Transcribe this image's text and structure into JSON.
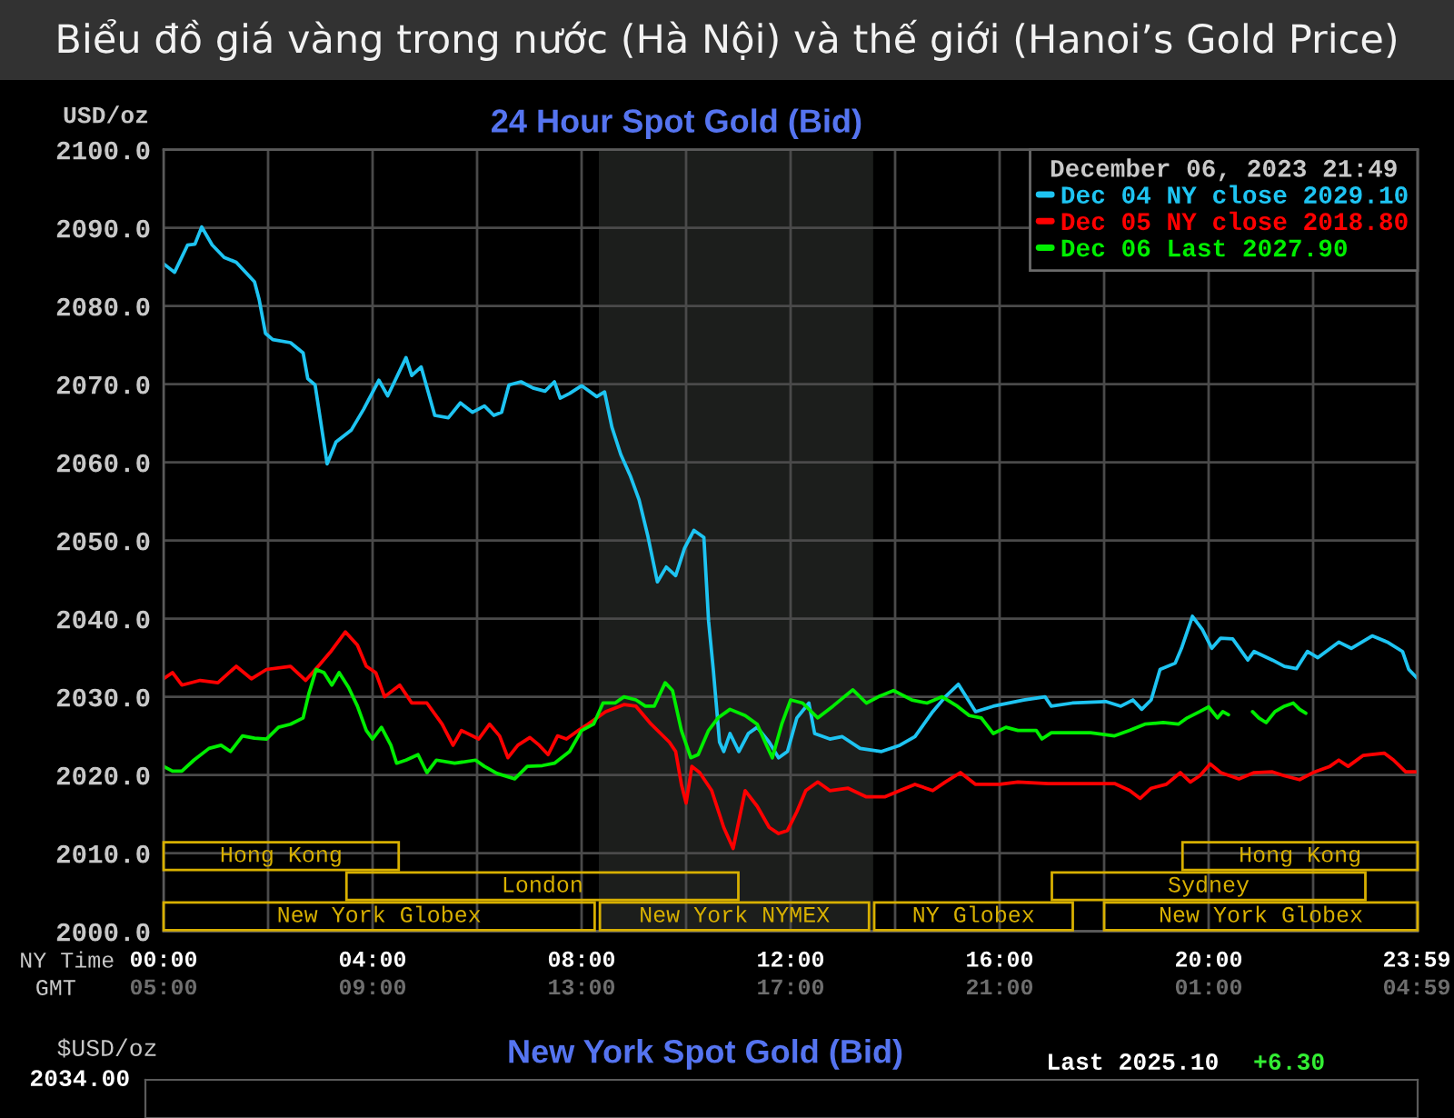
{
  "chart_data": [
    {
      "type": "line",
      "title": "Biểu đồ giá vàng trong nước (Hà Nội) và thế giới (Hanoi’s Gold Price)",
      "subtitle": "24 Hour Spot Gold (Bid)",
      "ylabel": "USD/oz",
      "xlabel": "NY Time",
      "x2label": "GMT",
      "legend_title": "December 06, 2023 21:49",
      "legend": "top right",
      "grid": true,
      "xlim": [
        0,
        24
      ],
      "xticks": [
        {
          "value": 0,
          "label": "00:00"
        },
        {
          "value": 2,
          "label": null
        },
        {
          "value": 4,
          "label": "04:00"
        },
        {
          "value": 6,
          "label": null
        },
        {
          "value": 8,
          "label": "08:00"
        },
        {
          "value": 10,
          "label": null
        },
        {
          "value": 12,
          "label": "12:00"
        },
        {
          "value": 14,
          "label": null
        },
        {
          "value": 16,
          "label": "16:00"
        },
        {
          "value": 18,
          "label": null
        },
        {
          "value": 20,
          "label": "20:00"
        },
        {
          "value": 22,
          "label": null
        },
        {
          "value": 23.983,
          "label": "23:59"
        }
      ],
      "x2lim": [
        "2023-12-06T05:00",
        "2023-12-07T05:00"
      ],
      "x2ticks": [
        {
          "value": "2023-12-06T05:00",
          "label": "05:00"
        },
        {
          "value": "2023-12-06T09:00",
          "label": "09:00"
        },
        {
          "value": "2023-12-06T13:00",
          "label": "13:00"
        },
        {
          "value": "2023-12-06T17:00",
          "label": "17:00"
        },
        {
          "value": "2023-12-06T21:00",
          "label": "21:00"
        },
        {
          "value": "2023-12-07T01:00",
          "label": "01:00"
        },
        {
          "value": "2023-12-07T04:59",
          "label": "04:59"
        }
      ],
      "ylim": [
        2000,
        2100
      ],
      "yticks": [
        {
          "value": 2000,
          "label": "2000.0"
        },
        {
          "value": 2010,
          "label": "2010.0"
        },
        {
          "value": 2020,
          "label": "2020.0"
        },
        {
          "value": 2030,
          "label": "2030.0"
        },
        {
          "value": 2040,
          "label": "2040.0"
        },
        {
          "value": 2050,
          "label": "2050.0"
        },
        {
          "value": 2060,
          "label": "2060.0"
        },
        {
          "value": 2070,
          "label": "2070.0"
        },
        {
          "value": 2080,
          "label": "2080.0"
        },
        {
          "value": 2090,
          "label": "2090.0"
        },
        {
          "value": 2100,
          "label": "2100.0"
        }
      ],
      "bands": [
        {
          "axis": "x",
          "from": 8.33,
          "to": 13.58,
          "color": "#1c1e1c"
        }
      ],
      "series": [
        {
          "name": "Dec 04 NY close 2029.10",
          "color": "#1ec4f2",
          "x": [
            0,
            0.21,
            0.46,
            0.6,
            0.73,
            0.93,
            1.16,
            1.39,
            1.74,
            1.83,
            1.95,
            2.09,
            2.43,
            2.67,
            2.76,
            2.9,
            3.13,
            3.3,
            3.59,
            3.83,
            4.12,
            4.29,
            4.64,
            4.75,
            4.93,
            5.19,
            5.45,
            5.68,
            5.91,
            6.14,
            6.32,
            6.47,
            6.61,
            6.84,
            7.07,
            7.3,
            7.48,
            7.59,
            7.77,
            8.0,
            8.29,
            8.44,
            8.58,
            8.75,
            8.93,
            9.1,
            9.27,
            9.45,
            9.62,
            9.8,
            9.97,
            10.15,
            10.34,
            10.43,
            10.52,
            10.64,
            10.72,
            10.84,
            11.01,
            11.19,
            11.36,
            11.59,
            11.77,
            11.94,
            12.12,
            12.35,
            12.46,
            12.75,
            12.99,
            13.33,
            13.74,
            14.09,
            14.38,
            14.72,
            14.96,
            15.21,
            15.54,
            15.88,
            16.46,
            16.87,
            16.99,
            17.39,
            18.03,
            18.32,
            18.55,
            18.72,
            18.9,
            19.07,
            19.36,
            19.48,
            19.69,
            19.88,
            20.06,
            20.23,
            20.46,
            20.75,
            20.87,
            21.22,
            21.45,
            21.68,
            21.89,
            22.09,
            22.49,
            22.73,
            23.13,
            23.42,
            23.71,
            23.83,
            24.0
          ],
          "values": [
            2085.4,
            2084.3,
            2087.8,
            2087.9,
            2090.1,
            2087.8,
            2086.2,
            2085.6,
            2083.1,
            2080.8,
            2076.5,
            2075.7,
            2075.3,
            2074.0,
            2070.7,
            2069.9,
            2059.8,
            2062.6,
            2064.1,
            2066.8,
            2070.5,
            2068.5,
            2073.4,
            2071.1,
            2072.2,
            2066.0,
            2065.7,
            2067.6,
            2066.4,
            2067.2,
            2066.0,
            2066.4,
            2069.9,
            2070.3,
            2069.5,
            2069.1,
            2070.3,
            2068.2,
            2068.8,
            2069.8,
            2068.4,
            2069.0,
            2064.5,
            2061.0,
            2058.3,
            2055.2,
            2050.5,
            2044.7,
            2046.6,
            2045.5,
            2049.0,
            2051.3,
            2050.4,
            2039.7,
            2033.5,
            2024.2,
            2023.0,
            2025.3,
            2023.0,
            2025.3,
            2026.1,
            2024.2,
            2022.2,
            2023.0,
            2027.3,
            2029.2,
            2025.3,
            2024.6,
            2024.9,
            2023.4,
            2023.0,
            2023.8,
            2024.9,
            2028.1,
            2030.0,
            2031.6,
            2028.1,
            2028.8,
            2029.6,
            2030.0,
            2028.8,
            2029.2,
            2029.4,
            2028.8,
            2029.6,
            2028.4,
            2029.6,
            2033.5,
            2034.3,
            2036.2,
            2040.3,
            2038.6,
            2036.2,
            2037.5,
            2037.4,
            2034.7,
            2035.8,
            2034.7,
            2033.9,
            2033.6,
            2035.8,
            2035.0,
            2037.0,
            2036.2,
            2037.8,
            2037.0,
            2035.8,
            2033.5,
            2032.3
          ]
        },
        {
          "name": "Dec 05 NY close 2018.80",
          "color": "#ff0000",
          "x": [
            0,
            0.17,
            0.35,
            0.7,
            1.04,
            1.39,
            1.68,
            1.97,
            2.43,
            2.72,
            2.96,
            3.19,
            3.48,
            3.71,
            3.88,
            4.06,
            4.23,
            4.52,
            4.75,
            5.04,
            5.33,
            5.54,
            5.7,
            6.03,
            6.24,
            6.43,
            6.59,
            6.78,
            7.01,
            7.19,
            7.36,
            7.54,
            7.71,
            7.94,
            8.12,
            8.46,
            8.81,
            9.04,
            9.33,
            9.68,
            9.8,
            9.91,
            10.0,
            10.11,
            10.26,
            10.49,
            10.72,
            10.9,
            11.13,
            11.36,
            11.59,
            11.77,
            11.94,
            12.12,
            12.29,
            12.52,
            12.75,
            13.1,
            13.45,
            13.8,
            14.09,
            14.38,
            14.72,
            14.96,
            15.25,
            15.54,
            16.0,
            16.35,
            16.93,
            17.39,
            18.2,
            18.49,
            18.69,
            18.9,
            19.19,
            19.46,
            19.65,
            19.83,
            20.03,
            20.23,
            20.58,
            20.87,
            21.22,
            21.45,
            21.74,
            22.03,
            22.32,
            22.49,
            22.67,
            22.96,
            23.36,
            23.54,
            23.77,
            24.0
          ],
          "values": [
            2032.3,
            2033.1,
            2031.5,
            2032.1,
            2031.8,
            2033.9,
            2032.3,
            2033.5,
            2033.9,
            2032.1,
            2033.9,
            2035.7,
            2038.3,
            2036.6,
            2033.9,
            2033.1,
            2030.0,
            2031.5,
            2029.2,
            2029.2,
            2026.5,
            2023.8,
            2025.7,
            2024.6,
            2026.5,
            2025.0,
            2022.2,
            2023.8,
            2024.8,
            2023.8,
            2022.6,
            2025.0,
            2024.6,
            2025.7,
            2026.5,
            2028.1,
            2029.0,
            2028.8,
            2026.5,
            2024.2,
            2023.0,
            2018.8,
            2016.4,
            2021.1,
            2020.3,
            2018.0,
            2013.3,
            2010.6,
            2018.0,
            2016.0,
            2013.3,
            2012.5,
            2012.9,
            2015.3,
            2018.0,
            2019.1,
            2018.0,
            2018.3,
            2017.2,
            2017.2,
            2018.0,
            2018.8,
            2018.0,
            2019.1,
            2020.3,
            2018.8,
            2018.8,
            2019.1,
            2018.9,
            2018.9,
            2018.9,
            2018.0,
            2017.0,
            2018.3,
            2018.8,
            2020.3,
            2019.1,
            2019.9,
            2021.4,
            2020.3,
            2019.5,
            2020.3,
            2020.4,
            2019.9,
            2019.4,
            2020.4,
            2021.1,
            2021.9,
            2021.1,
            2022.5,
            2022.8,
            2021.9,
            2020.4,
            2020.4
          ]
        },
        {
          "name": "Dec 06 Last 2027.90",
          "color": "#00ee00",
          "x": [
            0,
            0.17,
            0.35,
            0.58,
            0.87,
            1.1,
            1.28,
            1.51,
            1.74,
            1.97,
            2.2,
            2.43,
            2.67,
            2.78,
            2.92,
            3.07,
            3.22,
            3.36,
            3.54,
            3.71,
            3.88,
            4.0,
            4.17,
            4.35,
            4.46,
            4.64,
            4.87,
            5.04,
            5.22,
            5.57,
            5.97,
            6.14,
            6.38,
            6.72,
            6.96,
            7.25,
            7.48,
            7.77,
            8.0,
            8.23,
            8.41,
            8.64,
            8.81,
            9.04,
            9.22,
            9.39,
            9.6,
            9.74,
            9.91,
            10.09,
            10.23,
            10.43,
            10.61,
            10.84,
            11.13,
            11.36,
            11.54,
            11.65,
            11.83,
            12.0,
            12.23,
            12.52,
            12.81,
            13.19,
            13.45,
            13.68,
            13.97,
            14.32,
            14.61,
            14.9,
            15.19,
            15.42,
            15.65,
            15.88,
            16.12,
            16.35,
            16.7,
            16.81,
            16.99,
            17.74,
            18.2,
            18.49,
            18.78,
            19.13,
            19.42,
            19.59,
            19.83,
            20.0,
            20.17,
            20.27,
            20.38,
            20.6,
            20.84,
            20.96,
            21.1,
            21.27,
            21.45,
            21.62,
            21.74,
            21.86
          ],
          "values": [
            2021.1,
            2020.5,
            2020.5,
            2021.9,
            2023.4,
            2023.8,
            2023.0,
            2025.0,
            2024.7,
            2024.6,
            2026.1,
            2026.5,
            2027.3,
            2030.4,
            2033.5,
            2033.1,
            2031.5,
            2033.1,
            2031.2,
            2028.8,
            2025.7,
            2024.6,
            2026.1,
            2023.8,
            2021.5,
            2021.9,
            2022.6,
            2020.3,
            2021.9,
            2021.5,
            2021.9,
            2021.1,
            2020.2,
            2019.5,
            2021.1,
            2021.2,
            2021.5,
            2023.0,
            2025.7,
            2026.5,
            2029.2,
            2029.2,
            2030.0,
            2029.6,
            2028.8,
            2028.8,
            2031.8,
            2030.8,
            2025.7,
            2022.2,
            2022.6,
            2025.7,
            2027.3,
            2028.4,
            2027.6,
            2026.5,
            2023.8,
            2022.2,
            2026.5,
            2029.6,
            2029.2,
            2027.3,
            2028.8,
            2030.9,
            2029.2,
            2030.0,
            2030.8,
            2029.6,
            2029.2,
            2030.0,
            2028.8,
            2027.6,
            2027.3,
            2025.3,
            2026.1,
            2025.7,
            2025.7,
            2024.6,
            2025.4,
            2025.4,
            2025.0,
            2025.7,
            2026.5,
            2026.7,
            2026.5,
            2027.3,
            2028.1,
            2028.7,
            2027.3,
            2028.1,
            2027.7,
            null,
            2028.1,
            2027.3,
            2026.7,
            2028.1,
            2028.8,
            2029.2,
            2028.4,
            2027.9
          ]
        }
      ]
    },
    {
      "type": "bar",
      "orientation": "horizontal",
      "xlim": [
        0,
        24
      ],
      "tick_labels": false,
      "categories": [
        null,
        null,
        null,
        null,
        null,
        null,
        null,
        null,
        null,
        null,
        null,
        null,
        null,
        null,
        null,
        null,
        null,
        null,
        null,
        null,
        null,
        null,
        null,
        null,
        null,
        null
      ],
      "series": [
        {
          "name": "Hong Kong",
          "color": "#d8b000",
          "values": [
            null,
            null,
            null,
            null,
            null,
            null,
            null,
            null,
            null,
            null,
            null,
            null,
            null,
            null,
            null,
            null,
            null,
            null,
            null,
            null,
            null,
            null,
            null,
            4.5,
            null,
            null
          ],
          "base": [
            null,
            null,
            null,
            null,
            null,
            null,
            null,
            null,
            null,
            null,
            null,
            null,
            null,
            null,
            null,
            null,
            null,
            null,
            null,
            null,
            null,
            null,
            null,
            0,
            null,
            null
          ]
        },
        {
          "name": "Hong Kong",
          "color": "#d8b000",
          "values": [
            null,
            null,
            null,
            null,
            null,
            null,
            null,
            null,
            null,
            null,
            null,
            null,
            null,
            null,
            null,
            null,
            null,
            null,
            null,
            null,
            null,
            null,
            null,
            4.5,
            null,
            null
          ],
          "base": [
            null,
            null,
            null,
            null,
            null,
            null,
            null,
            null,
            null,
            null,
            null,
            null,
            null,
            null,
            null,
            null,
            null,
            null,
            null,
            null,
            null,
            null,
            null,
            19.5,
            null,
            null
          ]
        },
        {
          "name": "London",
          "color": "#d8b000",
          "values": [
            null,
            null,
            null,
            null,
            null,
            null,
            null,
            null,
            null,
            null,
            null,
            null,
            null,
            null,
            null,
            null,
            null,
            null,
            null,
            null,
            null,
            null,
            null,
            null,
            7.5,
            null
          ],
          "base": [
            null,
            null,
            null,
            null,
            null,
            null,
            null,
            null,
            null,
            null,
            null,
            null,
            null,
            null,
            null,
            null,
            null,
            null,
            null,
            null,
            null,
            null,
            null,
            null,
            3.5,
            null
          ]
        },
        {
          "name": "Sydney",
          "color": "#d8b000",
          "values": [
            null,
            null,
            null,
            null,
            null,
            null,
            null,
            null,
            null,
            null,
            null,
            null,
            null,
            null,
            null,
            null,
            null,
            null,
            null,
            null,
            null,
            null,
            null,
            null,
            6.0,
            null
          ],
          "base": [
            null,
            null,
            null,
            null,
            null,
            null,
            null,
            null,
            null,
            null,
            null,
            null,
            null,
            null,
            null,
            null,
            null,
            null,
            null,
            null,
            null,
            null,
            null,
            null,
            17.0,
            null
          ]
        },
        {
          "name": "New York Globex",
          "color": "#d8b000",
          "values": [
            null,
            null,
            null,
            null,
            null,
            null,
            null,
            null,
            null,
            null,
            null,
            null,
            null,
            null,
            null,
            null,
            null,
            null,
            null,
            null,
            null,
            null,
            null,
            null,
            null,
            8.25
          ],
          "base": [
            null,
            null,
            null,
            null,
            null,
            null,
            null,
            null,
            null,
            null,
            null,
            null,
            null,
            null,
            null,
            null,
            null,
            null,
            null,
            null,
            null,
            null,
            null,
            null,
            null,
            0
          ]
        },
        {
          "name": "New York NYMEX",
          "color": "#d8b000",
          "values": [
            null,
            null,
            null,
            null,
            null,
            null,
            null,
            null,
            null,
            null,
            null,
            null,
            null,
            null,
            null,
            null,
            null,
            null,
            null,
            null,
            null,
            null,
            null,
            null,
            null,
            5.15
          ],
          "base": [
            null,
            null,
            null,
            null,
            null,
            null,
            null,
            null,
            null,
            null,
            null,
            null,
            null,
            null,
            null,
            null,
            null,
            null,
            null,
            null,
            null,
            null,
            null,
            null,
            null,
            8.35
          ]
        },
        {
          "name": "NY Globex",
          "color": "#d8b000",
          "values": [
            null,
            null,
            null,
            null,
            null,
            null,
            null,
            null,
            null,
            null,
            null,
            null,
            null,
            null,
            null,
            null,
            null,
            null,
            null,
            null,
            null,
            null,
            null,
            null,
            null,
            3.8
          ],
          "base": [
            null,
            null,
            null,
            null,
            null,
            null,
            null,
            null,
            null,
            null,
            null,
            null,
            null,
            null,
            null,
            null,
            null,
            null,
            null,
            null,
            null,
            null,
            null,
            null,
            null,
            13.6
          ]
        },
        {
          "name": "New York Globex",
          "color": "#d8b000",
          "values": [
            null,
            null,
            null,
            null,
            null,
            null,
            null,
            null,
            null,
            null,
            null,
            null,
            null,
            null,
            null,
            null,
            null,
            null,
            null,
            null,
            null,
            null,
            null,
            null,
            null,
            6.0
          ],
          "base": [
            null,
            null,
            null,
            null,
            null,
            null,
            null,
            null,
            null,
            null,
            null,
            null,
            null,
            null,
            null,
            null,
            null,
            null,
            null,
            null,
            null,
            null,
            null,
            null,
            null,
            18.0
          ]
        }
      ]
    },
    {
      "type": "other",
      "title": "New York Spot Gold (Bid)",
      "ylabel": "$USD/oz",
      "annotations": [
        "Last 2025.10",
        "+6.30",
        "2034.00"
      ]
    }
  ]
}
